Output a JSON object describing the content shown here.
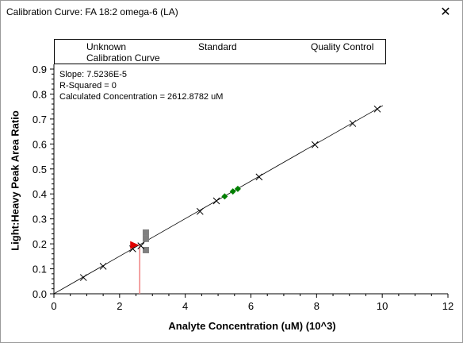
{
  "window": {
    "title": "Calibration Curve: FA 18:2 omega-6 (LA)",
    "close_glyph": "✕"
  },
  "annotations": {
    "slope": "Slope: 7.5236E-5",
    "r_squared": "R-Squared = 0",
    "concentration": "Calculated Concentration = 2612.8782 uM"
  },
  "legend": {
    "unknown": "Unknown",
    "standard": "Standard",
    "qc": "Quality Control",
    "curve": "Calibration Curve"
  },
  "colors": {
    "unknown": "#000000",
    "standard": "#808080",
    "qc": "#008000",
    "selected": "#e00000",
    "drop_line": "#f08080",
    "curve": "#000000"
  },
  "chart_data": {
    "type": "scatter",
    "xlabel": "Analyte Concentration (uM) (10^3)",
    "ylabel": "Light:Heavy Peak Area Ratio",
    "xlim": [
      0,
      12
    ],
    "ylim": [
      0,
      0.9
    ],
    "x_ticks": [
      "0",
      "2",
      "4",
      "6",
      "8",
      "10",
      "12"
    ],
    "y_ticks": [
      "0.0",
      "0.1",
      "0.2",
      "0.3",
      "0.4",
      "0.5",
      "0.6",
      "0.7",
      "0.8",
      "0.9"
    ],
    "slope_per_thousand": 0.075236,
    "series": [
      {
        "name": "Unknown",
        "marker": "x",
        "points": [
          [
            0.9,
            0.065
          ],
          [
            1.5,
            0.11
          ],
          [
            2.4,
            0.18
          ],
          [
            2.65,
            0.192
          ],
          [
            4.45,
            0.33
          ],
          [
            4.95,
            0.372
          ],
          [
            6.25,
            0.468
          ],
          [
            7.95,
            0.597
          ],
          [
            9.1,
            0.682
          ],
          [
            9.85,
            0.74
          ]
        ]
      },
      {
        "name": "Standard",
        "marker": "square",
        "points": [
          [
            2.8,
            0.175
          ],
          [
            2.8,
            0.22
          ],
          [
            2.8,
            0.245
          ]
        ]
      },
      {
        "name": "Quality Control",
        "marker": "diamond",
        "points": [
          [
            5.2,
            0.39
          ],
          [
            5.45,
            0.41
          ],
          [
            5.6,
            0.42
          ]
        ]
      }
    ],
    "selected": {
      "x": 2.6129,
      "y": 0.195
    }
  }
}
